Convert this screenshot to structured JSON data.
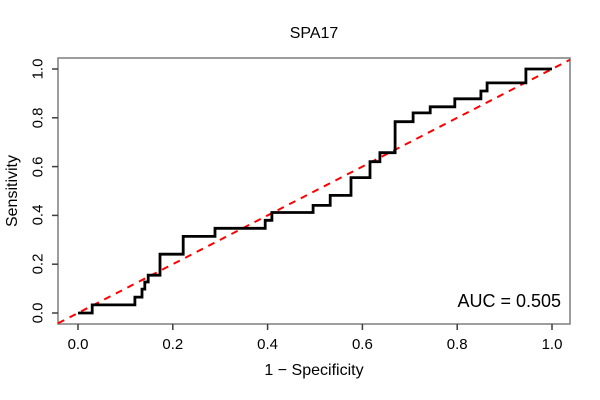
{
  "title": "SPA17",
  "axes": {
    "x_label": "1 − Specificity",
    "y_label": "Sensitivity",
    "x_tick_labels": [
      "0.0",
      "0.2",
      "0.4",
      "0.6",
      "0.8",
      "1.0"
    ],
    "y_tick_labels": [
      "0.0",
      "0.2",
      "0.4",
      "0.6",
      "0.8",
      "1.0"
    ]
  },
  "annotation": {
    "auc_label": "AUC = 0.505"
  },
  "colors": {
    "curve": "#000000",
    "reference_line": "#fe0000",
    "box": "#7d7d7d",
    "tick": "#3d3d3d",
    "text": "#000000",
    "background": "#ffffff"
  },
  "chart_data": {
    "type": "line",
    "subtype": "roc-step-curve",
    "title": "SPA17",
    "xlabel": "1 − Specificity",
    "ylabel": "Sensitivity",
    "xlim": [
      0,
      1
    ],
    "ylim": [
      0,
      1
    ],
    "x_ticks": [
      0,
      0.2,
      0.4,
      0.6,
      0.8,
      1.0
    ],
    "y_ticks": [
      0,
      0.2,
      0.4,
      0.6,
      0.8,
      1.0
    ],
    "grid": false,
    "legend": "none",
    "auc": 0.505,
    "series": [
      {
        "name": "ROC curve",
        "style": "step-solid",
        "color": "#000000",
        "line_width": 2.8,
        "points": [
          [
            0.0,
            0.0
          ],
          [
            0.03,
            0.0
          ],
          [
            0.03,
            0.033
          ],
          [
            0.12,
            0.033
          ],
          [
            0.12,
            0.065
          ],
          [
            0.135,
            0.065
          ],
          [
            0.135,
            0.098
          ],
          [
            0.141,
            0.098
          ],
          [
            0.141,
            0.127
          ],
          [
            0.148,
            0.127
          ],
          [
            0.148,
            0.155
          ],
          [
            0.173,
            0.155
          ],
          [
            0.173,
            0.241
          ],
          [
            0.222,
            0.241
          ],
          [
            0.222,
            0.314
          ],
          [
            0.289,
            0.314
          ],
          [
            0.289,
            0.347
          ],
          [
            0.395,
            0.347
          ],
          [
            0.395,
            0.38
          ],
          [
            0.409,
            0.38
          ],
          [
            0.409,
            0.412
          ],
          [
            0.496,
            0.412
          ],
          [
            0.496,
            0.441
          ],
          [
            0.532,
            0.441
          ],
          [
            0.532,
            0.482
          ],
          [
            0.576,
            0.482
          ],
          [
            0.576,
            0.555
          ],
          [
            0.616,
            0.555
          ],
          [
            0.616,
            0.62
          ],
          [
            0.637,
            0.62
          ],
          [
            0.637,
            0.657
          ],
          [
            0.669,
            0.657
          ],
          [
            0.669,
            0.784
          ],
          [
            0.707,
            0.784
          ],
          [
            0.707,
            0.82
          ],
          [
            0.743,
            0.82
          ],
          [
            0.743,
            0.845
          ],
          [
            0.795,
            0.845
          ],
          [
            0.795,
            0.878
          ],
          [
            0.85,
            0.878
          ],
          [
            0.85,
            0.91
          ],
          [
            0.863,
            0.91
          ],
          [
            0.863,
            0.943
          ],
          [
            0.945,
            0.943
          ],
          [
            0.945,
            1.0
          ],
          [
            1.0,
            1.0
          ]
        ]
      },
      {
        "name": "chance diagonal",
        "style": "dashed",
        "color": "#fe0000",
        "line_width": 2,
        "points": [
          [
            0,
            0
          ],
          [
            1,
            1
          ]
        ]
      }
    ]
  }
}
